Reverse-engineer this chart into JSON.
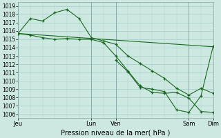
{
  "bg_color": "#cce8e0",
  "grid_color": "#aad4cc",
  "line_color": "#1a6620",
  "ylim": [
    1005.5,
    1019.5
  ],
  "xlim": [
    0,
    96
  ],
  "xtick_positions": [
    0,
    36,
    48,
    84,
    96
  ],
  "xtick_labels": [
    "Jeu",
    "Lun",
    "Ven",
    "Sam",
    "Dim"
  ],
  "ytick_vals": [
    1006,
    1007,
    1008,
    1009,
    1010,
    1011,
    1012,
    1013,
    1014,
    1015,
    1016,
    1017,
    1018,
    1019
  ],
  "xlabel": "Pression niveau de la mer( hPa )",
  "line1": {
    "x": [
      0,
      96
    ],
    "y": [
      1015.7,
      1014.1
    ]
  },
  "line2": {
    "x": [
      0,
      6,
      12,
      18,
      24,
      30,
      36,
      42,
      48,
      54,
      60,
      66,
      72,
      78,
      84,
      90,
      96
    ],
    "y": [
      1015.7,
      1017.5,
      1017.2,
      1018.2,
      1018.6,
      1017.5,
      1015.2,
      1014.8,
      1014.4,
      1013.0,
      1012.1,
      1011.2,
      1010.3,
      1009.1,
      1008.3,
      1009.1,
      1008.5
    ]
  },
  "line3": {
    "x": [
      0,
      6,
      12,
      18,
      24,
      30,
      36,
      42,
      48,
      54,
      60,
      66,
      72,
      78,
      84,
      90,
      96
    ],
    "y": [
      1015.7,
      1015.5,
      1015.2,
      1015.0,
      1015.1,
      1015.0,
      1015.0,
      1014.6,
      1013.0,
      1011.2,
      1009.4,
      1008.6,
      1008.5,
      1008.6,
      1007.9,
      1006.3,
      1006.2
    ]
  },
  "line4": {
    "x": [
      48,
      54,
      60,
      66,
      72,
      78,
      84,
      90,
      96
    ],
    "y": [
      1012.5,
      1011.1,
      1009.2,
      1009.0,
      1008.7,
      1006.5,
      1006.2,
      1008.2,
      1014.2
    ]
  }
}
